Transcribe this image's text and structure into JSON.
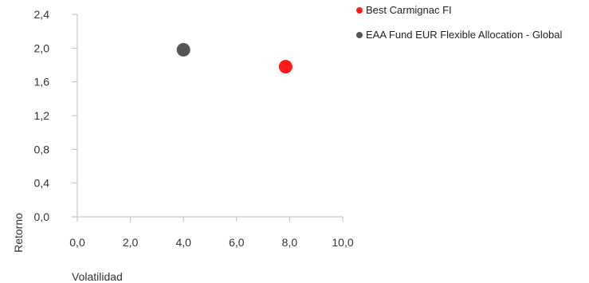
{
  "chart_data": {
    "type": "scatter",
    "title": "",
    "xlabel": "Volatilidad",
    "ylabel": "Retorno",
    "xlim": [
      0,
      10
    ],
    "ylim": [
      0,
      2.4
    ],
    "x_ticks": [
      "0,0",
      "2,0",
      "4,0",
      "6,0",
      "8,0",
      "10,0"
    ],
    "y_ticks": [
      "0,0",
      "0,4",
      "0,8",
      "1,2",
      "1,6",
      "2,0",
      "2,4"
    ],
    "x_tick_values": [
      0,
      2,
      4,
      6,
      8,
      10
    ],
    "y_tick_values": [
      0,
      0.4,
      0.8,
      1.2,
      1.6,
      2.0,
      2.4
    ],
    "grid": false,
    "legend_position": "top-right",
    "series": [
      {
        "name": "Best Carmignac FI",
        "color": "#ff1a1a",
        "x": 7.85,
        "y": 1.78
      },
      {
        "name": "EAA Fund EUR Flexible Allocation - Global",
        "color": "#555555",
        "x": 4.0,
        "y": 1.98
      }
    ]
  }
}
